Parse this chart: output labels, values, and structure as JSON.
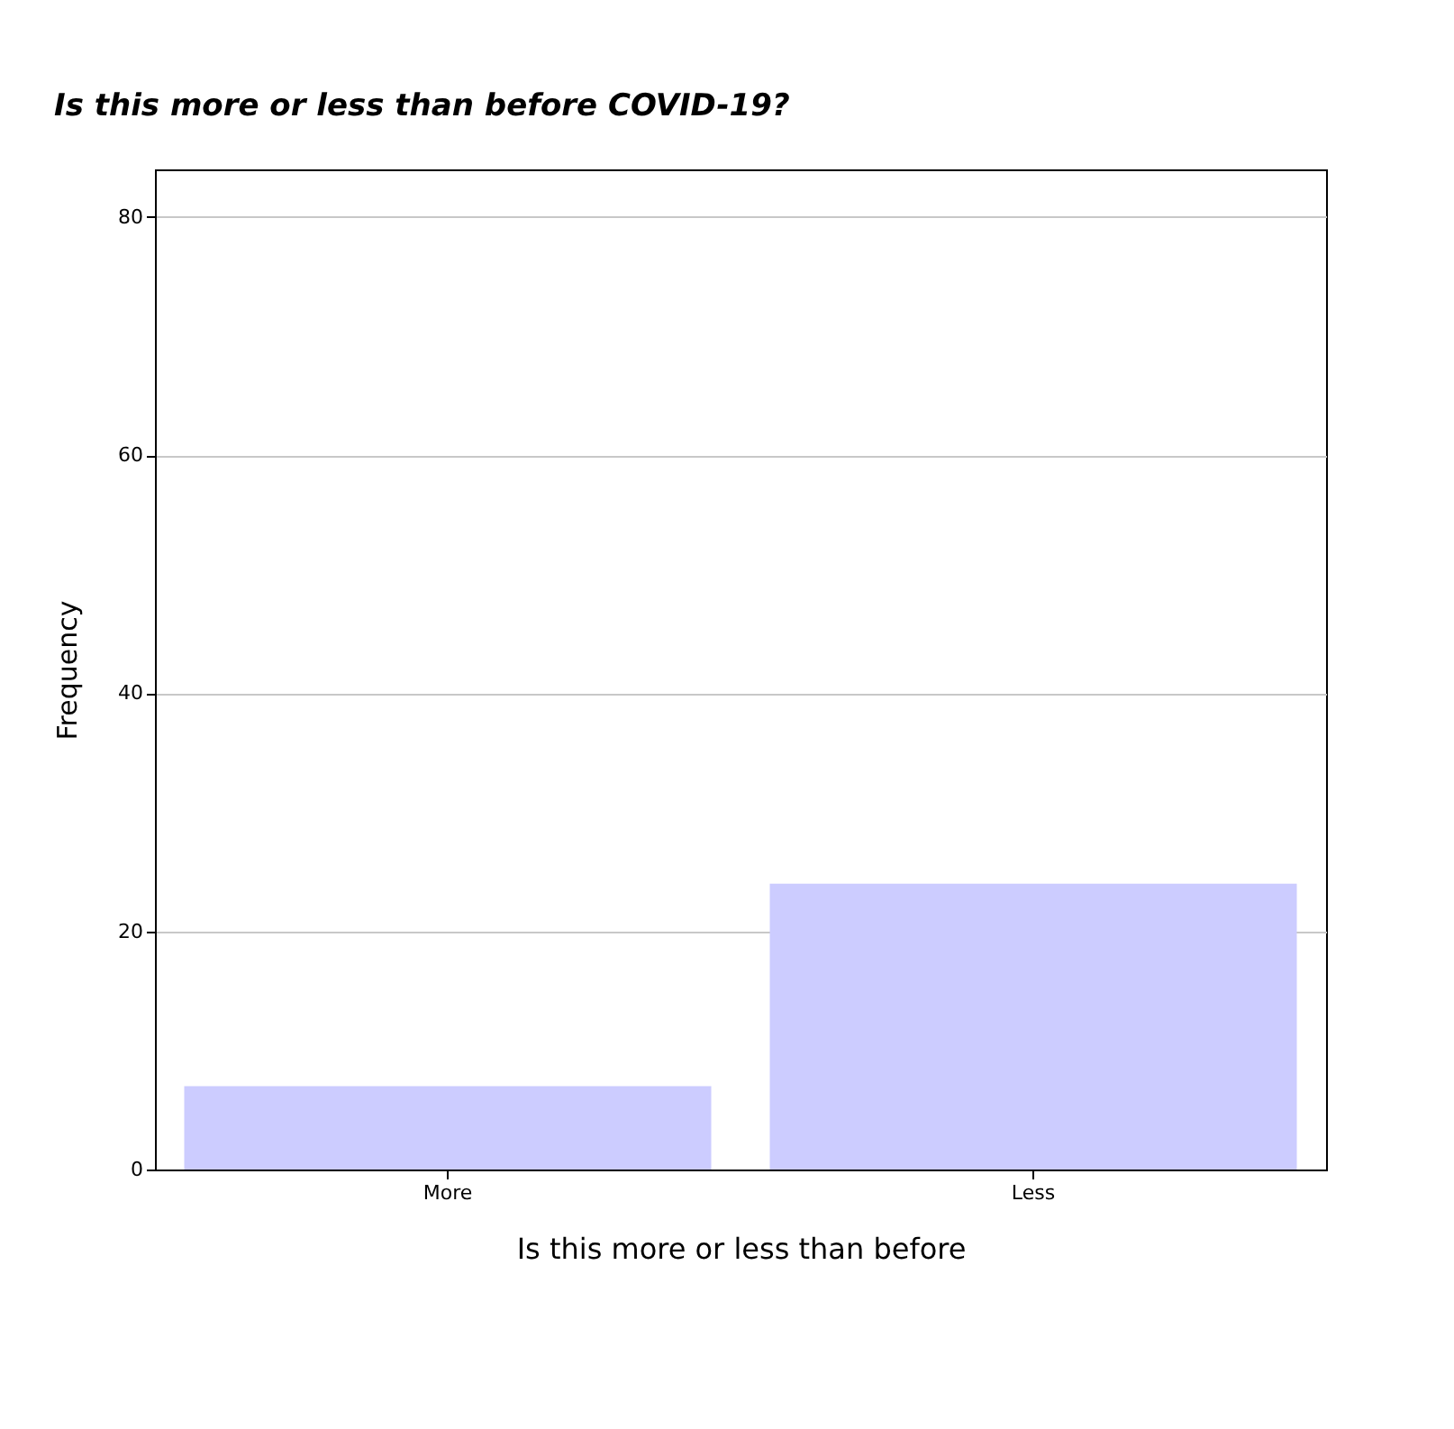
{
  "chart_data": {
    "type": "bar",
    "title": "Is this more or less than before COVID-19?",
    "xlabel": "Is this more or less than before",
    "ylabel": "Frequency",
    "categories": [
      "More",
      "Less"
    ],
    "series": [
      {
        "color": "#ccccff",
        "values": [
          7,
          24
        ]
      }
    ],
    "ylim": [
      0,
      84
    ],
    "yticks": [
      0,
      20,
      40,
      60,
      80
    ],
    "grid": "y",
    "legend": false
  }
}
